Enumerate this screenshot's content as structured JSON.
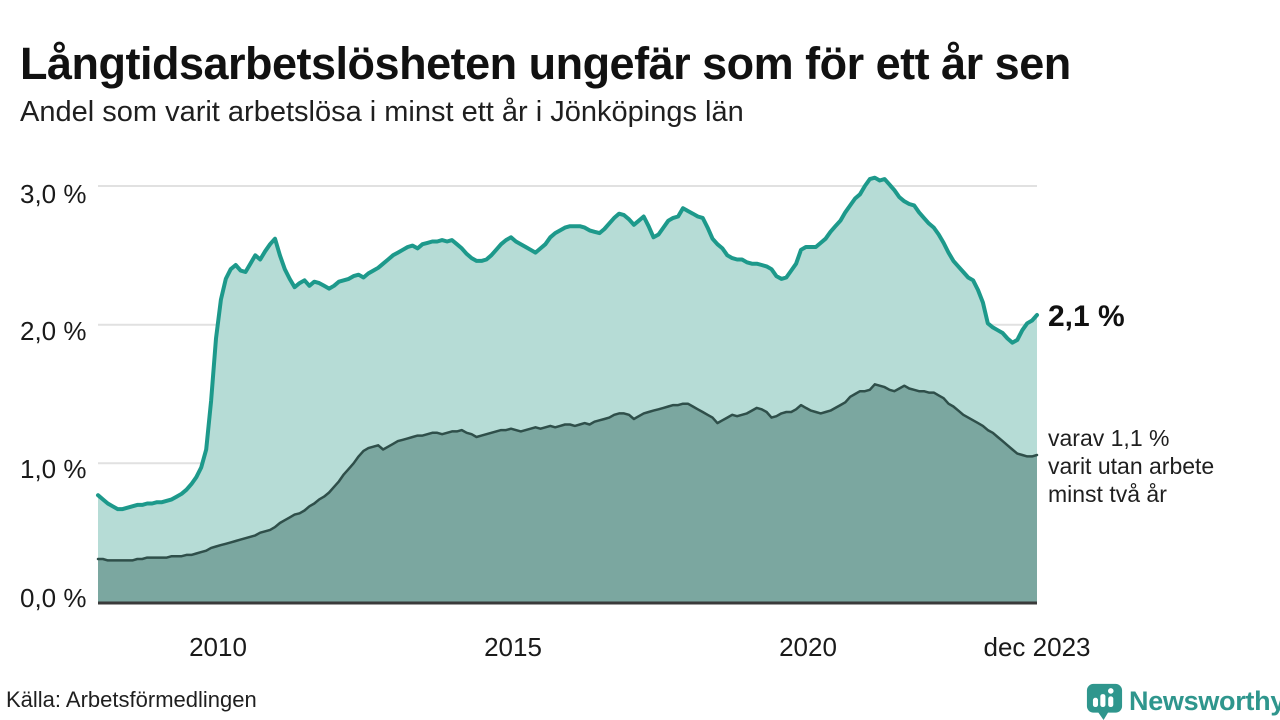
{
  "header": {
    "title": "Långtidsarbetslösheten ungefär som för ett år sen",
    "subtitle": "Andel som varit arbetslösa i minst ett år i Jönköpings län"
  },
  "chart_data": {
    "type": "area",
    "title": "Långtidsarbetslösheten ungefär som för ett år sen",
    "subtitle": "Andel som varit arbetslösa i minst ett år i Jönköpings län",
    "unit": "%",
    "x_range": [
      "2008-01",
      "2023-12"
    ],
    "frequency": "monthly",
    "ylim": [
      0,
      3.2
    ],
    "grid": true,
    "y_ticks": [
      {
        "label": "3,0 %",
        "value": 3.0
      },
      {
        "label": "2,0 %",
        "value": 2.0
      },
      {
        "label": "1,0 %",
        "value": 1.0
      },
      {
        "label": "0,0 %",
        "value": 0.0
      }
    ],
    "x_ticks": [
      {
        "label": "2010",
        "month_index": 24
      },
      {
        "label": "2015",
        "month_index": 84
      },
      {
        "label": "2020",
        "month_index": 144
      },
      {
        "label": "dec 2023",
        "month_index": 191
      }
    ],
    "series": [
      {
        "name": "arbetslösa minst ett år",
        "color": "#1d998b",
        "fill": "#b6dcd6",
        "stroke_width": 4,
        "end_value": 2.1,
        "values": [
          0.77,
          0.74,
          0.71,
          0.69,
          0.67,
          0.67,
          0.68,
          0.69,
          0.7,
          0.7,
          0.71,
          0.71,
          0.72,
          0.72,
          0.73,
          0.74,
          0.76,
          0.78,
          0.81,
          0.85,
          0.9,
          0.97,
          1.1,
          1.45,
          1.9,
          2.18,
          2.33,
          2.4,
          2.43,
          2.39,
          2.38,
          2.44,
          2.5,
          2.47,
          2.53,
          2.58,
          2.62,
          2.5,
          2.4,
          2.33,
          2.27,
          2.3,
          2.32,
          2.28,
          2.31,
          2.3,
          2.28,
          2.26,
          2.28,
          2.31,
          2.32,
          2.33,
          2.35,
          2.36,
          2.34,
          2.37,
          2.39,
          2.41,
          2.44,
          2.47,
          2.5,
          2.52,
          2.54,
          2.56,
          2.57,
          2.55,
          2.58,
          2.59,
          2.6,
          2.6,
          2.61,
          2.6,
          2.61,
          2.58,
          2.55,
          2.51,
          2.48,
          2.46,
          2.46,
          2.47,
          2.5,
          2.54,
          2.58,
          2.61,
          2.63,
          2.6,
          2.58,
          2.56,
          2.54,
          2.52,
          2.55,
          2.58,
          2.63,
          2.66,
          2.68,
          2.7,
          2.71,
          2.71,
          2.71,
          2.7,
          2.68,
          2.67,
          2.66,
          2.69,
          2.73,
          2.77,
          2.8,
          2.79,
          2.76,
          2.72,
          2.75,
          2.78,
          2.71,
          2.63,
          2.65,
          2.7,
          2.75,
          2.77,
          2.78,
          2.84,
          2.82,
          2.8,
          2.78,
          2.77,
          2.7,
          2.62,
          2.58,
          2.55,
          2.5,
          2.48,
          2.47,
          2.47,
          2.45,
          2.44,
          2.44,
          2.43,
          2.42,
          2.4,
          2.35,
          2.33,
          2.34,
          2.39,
          2.44,
          2.54,
          2.56,
          2.56,
          2.56,
          2.59,
          2.62,
          2.67,
          2.71,
          2.75,
          2.81,
          2.86,
          2.91,
          2.94,
          3.0,
          3.05,
          3.06,
          3.04,
          3.05,
          3.01,
          2.97,
          2.92,
          2.89,
          2.87,
          2.86,
          2.81,
          2.77,
          2.73,
          2.7,
          2.65,
          2.59,
          2.52,
          2.46,
          2.42,
          2.38,
          2.34,
          2.32,
          2.25,
          2.16,
          2.01,
          1.98,
          1.96,
          1.94,
          1.9,
          1.87,
          1.89,
          1.96,
          2.01,
          2.03,
          2.07
        ]
      },
      {
        "name": "varav utan arbete minst två år",
        "color": "#2f4f4a",
        "fill": "#7ba7a0",
        "stroke_width": 2.5,
        "end_value": 1.1,
        "values": [
          0.31,
          0.31,
          0.3,
          0.3,
          0.3,
          0.3,
          0.3,
          0.3,
          0.31,
          0.31,
          0.32,
          0.32,
          0.32,
          0.32,
          0.32,
          0.33,
          0.33,
          0.33,
          0.34,
          0.34,
          0.35,
          0.36,
          0.37,
          0.39,
          0.4,
          0.41,
          0.42,
          0.43,
          0.44,
          0.45,
          0.46,
          0.47,
          0.48,
          0.5,
          0.51,
          0.52,
          0.54,
          0.57,
          0.59,
          0.61,
          0.63,
          0.64,
          0.66,
          0.69,
          0.71,
          0.74,
          0.76,
          0.79,
          0.83,
          0.87,
          0.92,
          0.96,
          1.0,
          1.05,
          1.09,
          1.11,
          1.12,
          1.13,
          1.1,
          1.12,
          1.14,
          1.16,
          1.17,
          1.18,
          1.19,
          1.2,
          1.2,
          1.21,
          1.22,
          1.22,
          1.21,
          1.22,
          1.23,
          1.23,
          1.24,
          1.22,
          1.21,
          1.19,
          1.2,
          1.21,
          1.22,
          1.23,
          1.24,
          1.24,
          1.25,
          1.24,
          1.23,
          1.24,
          1.25,
          1.26,
          1.25,
          1.26,
          1.27,
          1.26,
          1.27,
          1.28,
          1.28,
          1.27,
          1.28,
          1.29,
          1.28,
          1.3,
          1.31,
          1.32,
          1.33,
          1.35,
          1.36,
          1.36,
          1.35,
          1.32,
          1.34,
          1.36,
          1.37,
          1.38,
          1.39,
          1.4,
          1.41,
          1.42,
          1.42,
          1.43,
          1.43,
          1.41,
          1.39,
          1.37,
          1.35,
          1.33,
          1.29,
          1.31,
          1.33,
          1.35,
          1.34,
          1.35,
          1.36,
          1.38,
          1.4,
          1.39,
          1.37,
          1.33,
          1.34,
          1.36,
          1.37,
          1.37,
          1.39,
          1.42,
          1.4,
          1.38,
          1.37,
          1.36,
          1.37,
          1.38,
          1.4,
          1.42,
          1.44,
          1.48,
          1.5,
          1.52,
          1.52,
          1.53,
          1.57,
          1.56,
          1.55,
          1.53,
          1.52,
          1.54,
          1.56,
          1.54,
          1.53,
          1.52,
          1.52,
          1.51,
          1.51,
          1.49,
          1.47,
          1.43,
          1.41,
          1.38,
          1.35,
          1.33,
          1.31,
          1.29,
          1.27,
          1.24,
          1.22,
          1.19,
          1.16,
          1.13,
          1.1,
          1.07,
          1.06,
          1.05,
          1.05,
          1.06
        ]
      }
    ],
    "annotations": {
      "end_value_label": "2,1 %",
      "sub_label_lines": [
        "varav 1,1 %",
        "varit utan arbete",
        "minst två år"
      ]
    }
  },
  "footer": {
    "source": "Källa: Arbetsförmedlingen",
    "logo_text": "Newsworthy"
  },
  "colors": {
    "accent_teal": "#1d998b",
    "light_fill": "#b6dcd6",
    "dark_line": "#2f4f4a",
    "dark_fill": "#7ba7a0",
    "gridline": "#e1e1e1",
    "axis": "#3a3a3a",
    "logo": "#2f968d"
  }
}
